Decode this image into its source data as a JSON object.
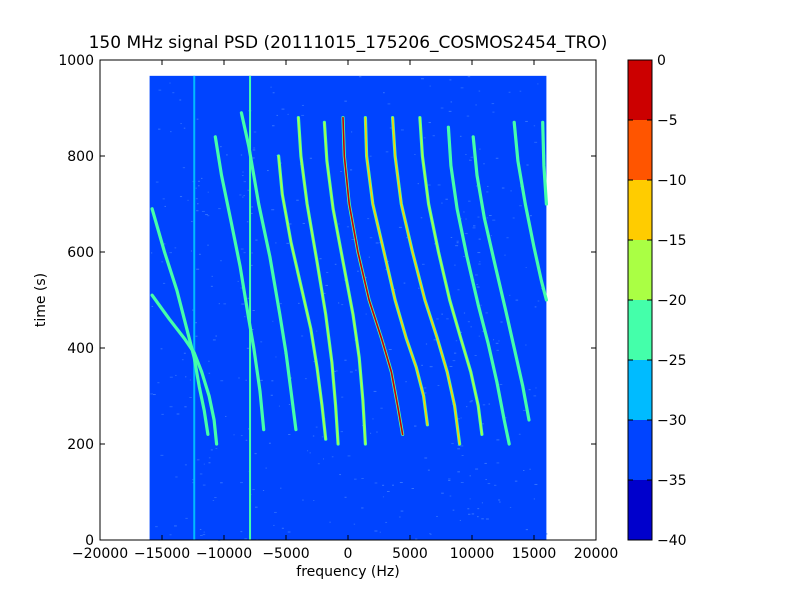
{
  "chart_data": {
    "type": "heatmap",
    "title": "150 MHz signal PSD (20111015_175206_COSMOS2454_TRO)",
    "xlabel": "frequency (Hz)",
    "ylabel": "time (s)",
    "xlim": [
      -20000,
      20000
    ],
    "ylim": [
      0,
      1000
    ],
    "xticks": [
      -20000,
      -15000,
      -10000,
      -5000,
      0,
      5000,
      10000,
      15000,
      20000
    ],
    "xtick_labels": [
      "−20000",
      "−15000",
      "−10000",
      "−5000",
      "0",
      "5000",
      "10000",
      "15000",
      "20000"
    ],
    "yticks": [
      0,
      200,
      400,
      600,
      800,
      1000
    ],
    "ytick_labels": [
      "0",
      "200",
      "400",
      "600",
      "800",
      "1000"
    ],
    "data_extent": {
      "x": [
        -16000,
        16000
      ],
      "y": [
        0,
        967
      ]
    },
    "grid": false,
    "colorbar": {
      "range": [
        -40,
        0
      ],
      "levels": [
        -40,
        -35,
        -30,
        -25,
        -20,
        -15,
        -10,
        -5,
        0
      ],
      "tick_labels": [
        "−40",
        "−35",
        "−30",
        "−25",
        "−20",
        "−15",
        "−10",
        "−5",
        "0"
      ],
      "colors": [
        "#0000cc",
        "#0044ff",
        "#00bbff",
        "#44ffaa",
        "#aaff44",
        "#ffcc00",
        "#ff5500",
        "#cc0000"
      ],
      "background_level_color": "#0044ff"
    },
    "vertical_lines": [
      {
        "x": -12400,
        "y": [
          0,
          967
        ],
        "color": "#00bbff"
      },
      {
        "x": -7900,
        "y": [
          0,
          967
        ],
        "color": "#44ffaa"
      }
    ],
    "traces": [
      {
        "points": [
          [
            -15800,
            690
          ],
          [
            -14800,
            600
          ],
          [
            -13800,
            520
          ],
          [
            -13000,
            440
          ],
          [
            -12400,
            380
          ],
          [
            -12000,
            320
          ],
          [
            -11600,
            270
          ],
          [
            -11300,
            220
          ]
        ],
        "level": -25
      },
      {
        "points": [
          [
            -15800,
            510
          ],
          [
            -14400,
            460
          ],
          [
            -13200,
            420
          ],
          [
            -12400,
            390
          ],
          [
            -11800,
            350
          ],
          [
            -11200,
            300
          ],
          [
            -10800,
            250
          ],
          [
            -10600,
            200
          ]
        ],
        "level": -25
      },
      {
        "points": [
          [
            -10700,
            840
          ],
          [
            -10200,
            760
          ],
          [
            -9400,
            660
          ],
          [
            -8700,
            570
          ],
          [
            -8000,
            460
          ],
          [
            -7600,
            400
          ],
          [
            -7100,
            310
          ],
          [
            -6800,
            230
          ]
        ],
        "level": -25
      },
      {
        "points": [
          [
            -8600,
            890
          ],
          [
            -8000,
            820
          ],
          [
            -7200,
            700
          ],
          [
            -6300,
            590
          ],
          [
            -5500,
            470
          ],
          [
            -5000,
            390
          ],
          [
            -4600,
            310
          ],
          [
            -4200,
            230
          ]
        ],
        "level": -25
      },
      {
        "points": [
          [
            -4000,
            880
          ],
          [
            -3800,
            800
          ],
          [
            -3300,
            700
          ],
          [
            -2500,
            580
          ],
          [
            -1800,
            470
          ],
          [
            -1300,
            370
          ],
          [
            -1000,
            280
          ],
          [
            -800,
            200
          ]
        ],
        "level": -20
      },
      {
        "points": [
          [
            -1900,
            870
          ],
          [
            -1700,
            790
          ],
          [
            -1200,
            690
          ],
          [
            -400,
            580
          ],
          [
            400,
            470
          ],
          [
            900,
            380
          ],
          [
            1200,
            290
          ],
          [
            1400,
            200
          ]
        ],
        "level": -20
      },
      {
        "points": [
          [
            -5600,
            800
          ],
          [
            -5300,
            720
          ],
          [
            -4600,
            620
          ],
          [
            -3800,
            530
          ],
          [
            -3000,
            440
          ],
          [
            -2500,
            360
          ],
          [
            -2100,
            280
          ],
          [
            -1800,
            210
          ]
        ],
        "level": -20
      },
      {
        "points": [
          [
            -400,
            880
          ],
          [
            -300,
            800
          ],
          [
            100,
            700
          ],
          [
            800,
            600
          ],
          [
            1700,
            500
          ],
          [
            2700,
            420
          ],
          [
            3500,
            350
          ],
          [
            4000,
            280
          ],
          [
            4400,
            220
          ]
        ],
        "level": -5
      },
      {
        "points": [
          [
            1400,
            880
          ],
          [
            1500,
            800
          ],
          [
            2000,
            700
          ],
          [
            2900,
            600
          ],
          [
            3800,
            500
          ],
          [
            4700,
            420
          ],
          [
            5500,
            360
          ],
          [
            6100,
            300
          ],
          [
            6400,
            240
          ]
        ],
        "level": -15
      },
      {
        "points": [
          [
            3600,
            880
          ],
          [
            3800,
            800
          ],
          [
            4300,
            700
          ],
          [
            5200,
            600
          ],
          [
            6200,
            500
          ],
          [
            7200,
            420
          ],
          [
            8000,
            350
          ],
          [
            8600,
            280
          ],
          [
            9000,
            200
          ]
        ],
        "level": -15
      },
      {
        "points": [
          [
            5800,
            880
          ],
          [
            6000,
            800
          ],
          [
            6500,
            700
          ],
          [
            7300,
            600
          ],
          [
            8200,
            500
          ],
          [
            9100,
            420
          ],
          [
            9900,
            350
          ],
          [
            10500,
            280
          ],
          [
            10800,
            220
          ]
        ],
        "level": -20
      },
      {
        "points": [
          [
            8100,
            860
          ],
          [
            8300,
            780
          ],
          [
            8800,
            690
          ],
          [
            9600,
            590
          ],
          [
            10500,
            490
          ],
          [
            11300,
            410
          ],
          [
            12000,
            330
          ],
          [
            12600,
            250
          ],
          [
            13000,
            200
          ]
        ],
        "level": -25
      },
      {
        "points": [
          [
            10100,
            840
          ],
          [
            10400,
            760
          ],
          [
            11000,
            670
          ],
          [
            11800,
            580
          ],
          [
            12700,
            480
          ],
          [
            13400,
            400
          ],
          [
            14100,
            320
          ],
          [
            14600,
            250
          ]
        ],
        "level": -25
      },
      {
        "points": [
          [
            13400,
            870
          ],
          [
            13700,
            790
          ],
          [
            14300,
            700
          ],
          [
            15000,
            610
          ],
          [
            15600,
            540
          ],
          [
            16000,
            500
          ]
        ],
        "level": -25
      },
      {
        "points": [
          [
            15700,
            870
          ],
          [
            15800,
            780
          ],
          [
            16000,
            700
          ]
        ],
        "level": -25
      }
    ]
  }
}
